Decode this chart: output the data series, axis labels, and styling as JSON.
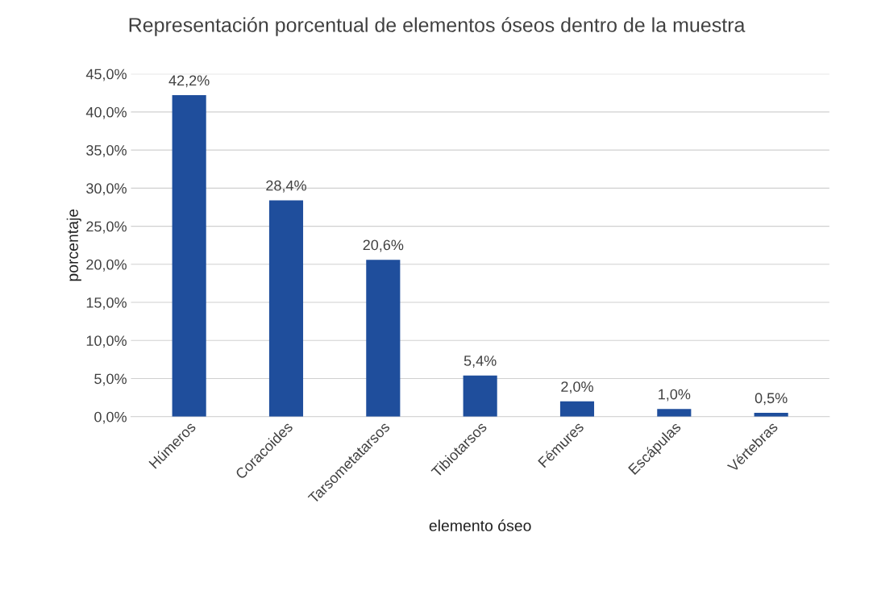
{
  "chart_data": {
    "type": "bar",
    "title": "Representación porcentual de elementos óseos dentro de la muestra",
    "xlabel": "elemento óseo",
    "ylabel": "porcentaje",
    "categories": [
      "Húmeros",
      "Coracoides",
      "Tarsometatarsos",
      "Tibiotarsos",
      "Fémures",
      "Escápulas",
      "Vértebras"
    ],
    "values": [
      42.2,
      28.4,
      20.6,
      5.4,
      2.0,
      1.0,
      0.5
    ],
    "value_labels": [
      "42,2%",
      "28,4%",
      "20,6%",
      "5,4%",
      "2,0%",
      "1,0%",
      "0,5%"
    ],
    "color": "#1f4e9c",
    "ylim": [
      0,
      45
    ],
    "yticks": [
      {
        "value": 0,
        "label": "0,0%"
      },
      {
        "value": 5,
        "label": "5,0%"
      },
      {
        "value": 10,
        "label": "10,0%"
      },
      {
        "value": 15,
        "label": "15,0%"
      },
      {
        "value": 20,
        "label": "20,0%"
      },
      {
        "value": 25,
        "label": "25,0%"
      },
      {
        "value": 30,
        "label": "30,0%"
      },
      {
        "value": 35,
        "label": "35,0%"
      },
      {
        "value": 40,
        "label": "40,0%"
      },
      {
        "value": 45,
        "label": "45,0%"
      }
    ],
    "grid": "y"
  }
}
